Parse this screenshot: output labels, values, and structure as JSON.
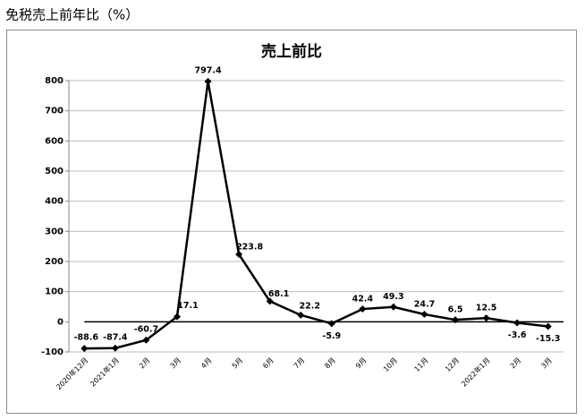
{
  "heading": "免税売上前年比（%）",
  "chart_data": {
    "type": "line",
    "title": "売上前比",
    "categories": [
      "2020年12月",
      "2021年1月",
      "2月",
      "3月",
      "4月",
      "5月",
      "6月",
      "7月",
      "8月",
      "9月",
      "10月",
      "11月",
      "12月",
      "2022年1月",
      "2月",
      "3月"
    ],
    "values": [
      -88.6,
      -87.4,
      -60.7,
      17.1,
      797.4,
      223.8,
      68.1,
      22.2,
      -5.9,
      42.4,
      49.3,
      24.7,
      6.5,
      12.5,
      -3.6,
      -15.3
    ],
    "color": "#000000",
    "ylim": [
      -100,
      800
    ],
    "yticks": [
      -100,
      0,
      100,
      200,
      300,
      400,
      500,
      600,
      700,
      800
    ],
    "grid": true
  }
}
